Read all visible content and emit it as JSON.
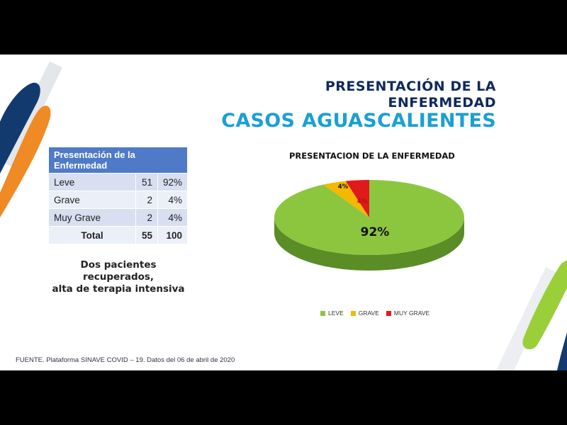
{
  "slide": {
    "title_line1": "PRESENTACIÓN DE LA",
    "title_line2": "ENFERMEDAD",
    "subtitle": "CASOS AGUASCALIENTES",
    "note_line1": "Dos pacientes recuperados,",
    "note_line2": "alta de terapia intensiva",
    "source": "FUENTE. Plataforma SINAVE COVID – 19. Datos del 06 de abril de 2020"
  },
  "table": {
    "header": "Presentación de la Enfermedad",
    "rows": [
      {
        "label": "Leve",
        "count": "51",
        "pct": "92%"
      },
      {
        "label": "Grave",
        "count": "2",
        "pct": "4%"
      },
      {
        "label": "Muy Grave",
        "count": "2",
        "pct": "4%"
      }
    ],
    "total": {
      "label": "Total",
      "count": "55",
      "pct": "100"
    }
  },
  "chart_data": {
    "type": "pie",
    "title": "PRESENTACION DE LA ENFERMEDAD",
    "categories": [
      "LEVE",
      "GRAVE",
      "MUY GRAVE"
    ],
    "values": [
      92,
      4,
      4
    ],
    "data_labels": [
      "92%",
      "4%",
      "4%"
    ],
    "colors": [
      "#8cc63f",
      "#f5b800",
      "#e0191b"
    ],
    "side_colors": [
      "#5a8d26",
      "#b88a00",
      "#9a1012"
    ],
    "legend_position": "bottom",
    "style": "3d"
  }
}
